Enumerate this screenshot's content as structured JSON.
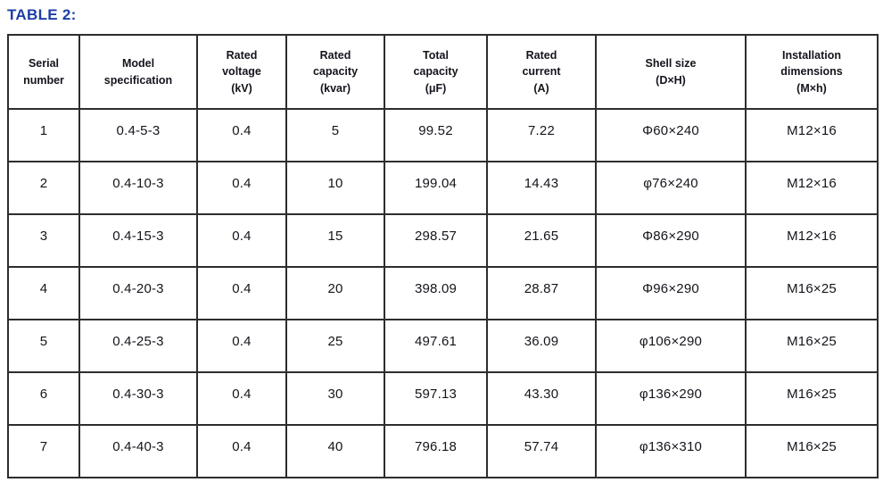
{
  "title": "TABLE 2:",
  "colors": {
    "title_blue": "#1E3DA5",
    "border": "#2D2D2D",
    "text": "#14141C",
    "background": "#FFFFFF"
  },
  "table": {
    "columns": [
      {
        "id": "serial-number",
        "label": "Serial\nnumber"
      },
      {
        "id": "model-specification",
        "label": "Model\nspecification"
      },
      {
        "id": "rated-voltage",
        "label": "Rated\nvoltage\n(kV)"
      },
      {
        "id": "rated-capacity",
        "label": "Rated\ncapacity\n(kvar)"
      },
      {
        "id": "total-capacity",
        "label": "Total\ncapacity\n(μF)"
      },
      {
        "id": "rated-current",
        "label": "Rated\ncurrent\n(A)"
      },
      {
        "id": "shell-size",
        "label": "Shell size\n(D×H)"
      },
      {
        "id": "installation-dimensions",
        "label": "Installation\ndimensions\n(M×h)"
      }
    ],
    "rows": [
      [
        "1",
        "0.4-5-3",
        "0.4",
        "5",
        "99.52",
        "7.22",
        "Φ60×240",
        "M12×16"
      ],
      [
        "2",
        "0.4-10-3",
        "0.4",
        "10",
        "199.04",
        "14.43",
        "φ76×240",
        "M12×16"
      ],
      [
        "3",
        "0.4-15-3",
        "0.4",
        "15",
        "298.57",
        "21.65",
        "Φ86×290",
        "M12×16"
      ],
      [
        "4",
        "0.4-20-3",
        "0.4",
        "20",
        "398.09",
        "28.87",
        "Φ96×290",
        "M16×25"
      ],
      [
        "5",
        "0.4-25-3",
        "0.4",
        "25",
        "497.61",
        "36.09",
        "φ106×290",
        "M16×25"
      ],
      [
        "6",
        "0.4-30-3",
        "0.4",
        "30",
        "597.13",
        "43.30",
        "φ136×290",
        "M16×25"
      ],
      [
        "7",
        "0.4-40-3",
        "0.4",
        "40",
        "796.18",
        "57.74",
        "φ136×310",
        "M16×25"
      ]
    ]
  }
}
